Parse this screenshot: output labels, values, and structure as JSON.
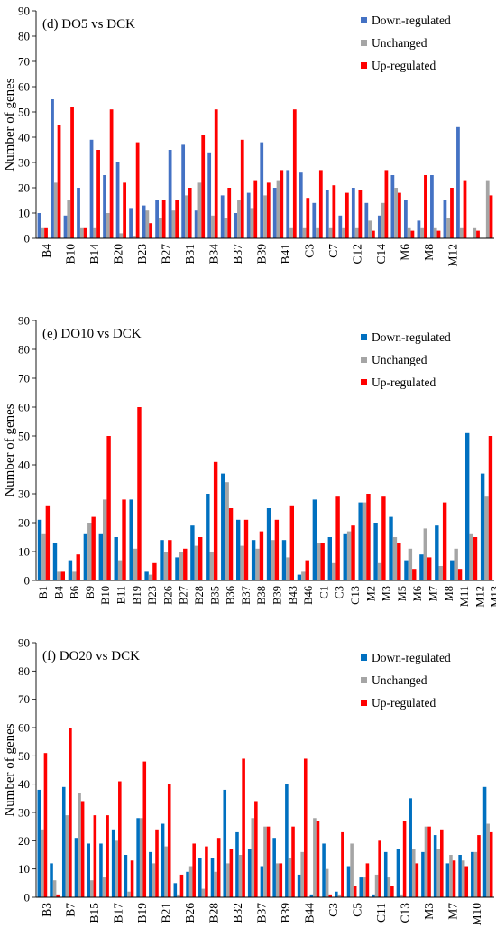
{
  "colors": {
    "down": "#4472C4",
    "unchanged": "#A5A5A5",
    "up": "#FF0000",
    "panel2_down": "#0070C0"
  },
  "chart_data": [
    {
      "type": "bar",
      "title": "(d) DO5 vs DCK",
      "ylabel": "Number of genes",
      "ylim": [
        0,
        90
      ],
      "yticks": [
        0,
        10,
        20,
        30,
        40,
        50,
        60,
        70,
        80,
        90
      ],
      "legend_position": "top-right",
      "grid": false,
      "tick_labels": [
        "B4",
        "B10",
        "B14",
        "B20",
        "B23",
        "B27",
        "B31",
        "B34",
        "B37",
        "B39",
        "B41",
        "C3",
        "C7",
        "C12",
        "C14",
        "M6",
        "M8",
        "M12"
      ],
      "series": [
        {
          "name": "Down-regulated",
          "values": [
            10,
            55,
            9,
            20,
            39,
            25,
            30,
            12,
            13,
            15,
            35,
            37,
            11,
            34,
            17,
            10,
            18,
            38,
            20,
            27,
            26,
            14,
            19,
            9,
            20,
            14,
            9,
            25,
            15,
            7,
            25,
            15,
            44
          ]
        },
        {
          "name": "Unchanged",
          "values": [
            4,
            22,
            15,
            4,
            4,
            10,
            2,
            1,
            11,
            8,
            11,
            17,
            22,
            9,
            8,
            15,
            12,
            17,
            23,
            4,
            4,
            4,
            4,
            4,
            4,
            7,
            14,
            20,
            4,
            4,
            4,
            8,
            4,
            4,
            23
          ]
        },
        {
          "name": "Up-regulated",
          "values": [
            4,
            45,
            52,
            4,
            35,
            51,
            22,
            38,
            6,
            15,
            15,
            20,
            41,
            51,
            20,
            39,
            23,
            22,
            27,
            51,
            16,
            27,
            21,
            18,
            19,
            3,
            27,
            18,
            3,
            25,
            3,
            20,
            23,
            3,
            17
          ]
        }
      ]
    },
    {
      "type": "bar",
      "title": "(e) DO10 vs DCK",
      "ylabel": "Number of genes",
      "ylim": [
        0,
        90
      ],
      "yticks": [
        0,
        10,
        20,
        30,
        40,
        50,
        60,
        70,
        80,
        90
      ],
      "legend_position": "top-right",
      "grid": false,
      "categories": [
        "B1",
        "B4",
        "B6",
        "B9",
        "B10",
        "B11",
        "B19",
        "B23",
        "B26",
        "B27",
        "B28",
        "B35",
        "B36",
        "B37",
        "B38",
        "B39",
        "B43",
        "B46",
        "C1",
        "C3",
        "C13",
        "M2",
        "M3",
        "M5",
        "M6",
        "M7",
        "M8",
        "M11",
        "M12",
        "M13"
      ],
      "series": [
        {
          "name": "Down-regulated",
          "values": [
            21,
            13,
            7,
            16,
            16,
            15,
            28,
            3,
            14,
            8,
            19,
            30,
            37,
            21,
            14,
            25,
            14,
            2,
            28,
            15,
            16,
            27,
            20,
            22,
            7,
            9,
            19,
            7,
            51,
            37
          ]
        },
        {
          "name": "Unchanged",
          "values": [
            16,
            3,
            3,
            20,
            28,
            7,
            11,
            2,
            10,
            10,
            12,
            10,
            34,
            12,
            11,
            14,
            8,
            3,
            13,
            6,
            17,
            27,
            6,
            15,
            11,
            18,
            5,
            11,
            16,
            29
          ]
        },
        {
          "name": "Up-regulated",
          "values": [
            26,
            3,
            9,
            22,
            50,
            28,
            60,
            6,
            14,
            11,
            15,
            41,
            25,
            21,
            17,
            21,
            26,
            7,
            13,
            29,
            19,
            30,
            29,
            13,
            4,
            8,
            27,
            4,
            15,
            50
          ]
        }
      ]
    },
    {
      "type": "bar",
      "title": "(f) DO20 vs DCK",
      "ylabel": "Number of genes",
      "ylim": [
        0,
        90
      ],
      "yticks": [
        0,
        10,
        20,
        30,
        40,
        50,
        60,
        70,
        80,
        90
      ],
      "legend_position": "top-right",
      "grid": false,
      "tick_labels": [
        "B3",
        "B7",
        "B15",
        "B17",
        "B19",
        "B21",
        "B26",
        "B28",
        "B32",
        "B37",
        "B39",
        "B44",
        "C3",
        "C5",
        "C11",
        "C13",
        "M3",
        "M7",
        "M10"
      ],
      "series": [
        {
          "name": "Down-regulated",
          "values": [
            38,
            12,
            39,
            21,
            19,
            19,
            24,
            15,
            28,
            16,
            26,
            5,
            9,
            14,
            14,
            38,
            23,
            17,
            11,
            21,
            40,
            8,
            1,
            19,
            2,
            11,
            7,
            1,
            16,
            17,
            35,
            16,
            22,
            12,
            15,
            16,
            39
          ]
        },
        {
          "name": "Unchanged",
          "values": [
            24,
            6,
            29,
            37,
            6,
            7,
            20,
            2,
            28,
            12,
            18,
            1,
            11,
            3,
            9,
            12,
            15,
            28,
            25,
            12,
            14,
            16,
            28,
            10,
            1,
            19,
            7,
            8,
            7,
            1,
            17,
            25,
            17,
            15,
            13,
            16,
            26
          ]
        },
        {
          "name": "Up-regulated",
          "values": [
            51,
            1,
            60,
            34,
            29,
            29,
            41,
            13,
            48,
            24,
            40,
            8,
            19,
            18,
            21,
            17,
            49,
            34,
            25,
            12,
            25,
            49,
            27,
            1,
            23,
            4,
            12,
            20,
            4,
            27,
            12,
            25,
            24,
            13,
            11,
            22,
            23
          ]
        }
      ]
    }
  ]
}
